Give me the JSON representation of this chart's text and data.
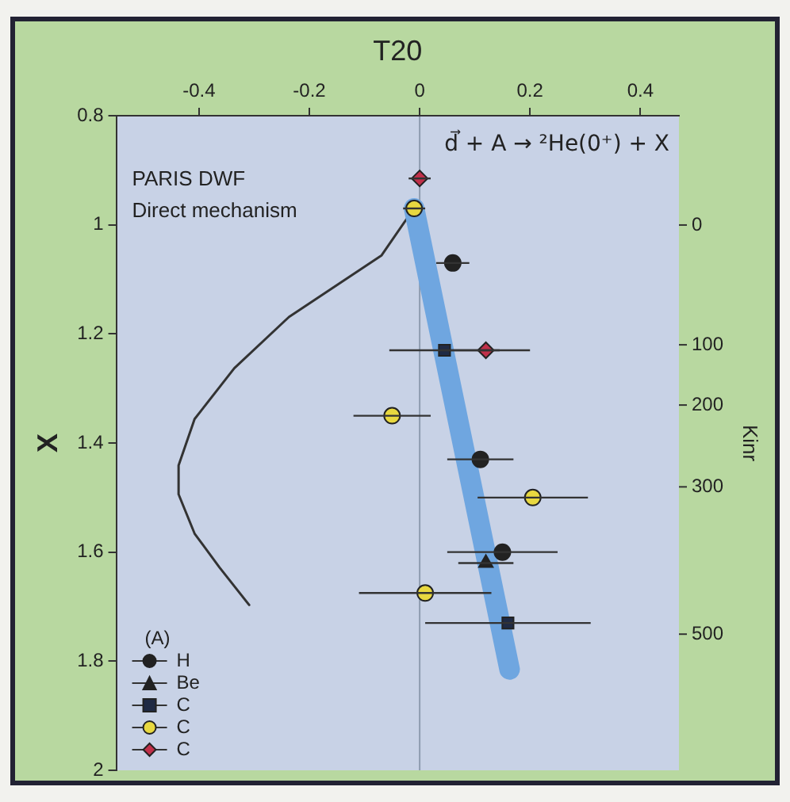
{
  "chart_data": {
    "type": "scatter",
    "xlabel": "T20",
    "ylabel": "X",
    "legend_title": "(A)",
    "legend": "bottom left",
    "xlim": [
      -0.55,
      0.47
    ],
    "xticks": [
      -0.4,
      -0.2,
      0,
      0.2,
      0.4
    ],
    "ylim": [
      2,
      0.8
    ],
    "yticks": [
      0.8,
      1,
      1.2,
      1.4,
      1.6,
      1.8,
      2
    ],
    "ref_lines": [
      {
        "axis": "x",
        "value": 0,
        "color": "#8e9cb0"
      }
    ],
    "annotations": [
      "d⃗ + A → ²He(0⁺) + X",
      "PARIS DWF",
      "Direct mechanism",
      "0",
      "100",
      "200",
      "300",
      "500",
      "Kinr"
    ],
    "series": [
      {
        "type": "line",
        "color": "#6fa6e0",
        "x": [
          -0.01,
          0.163
        ],
        "values": [
          0.97,
          1.815
        ]
      },
      {
        "type": "line",
        "color": "#333333",
        "x": [
          -0.016,
          -0.069,
          -0.237,
          -0.336,
          -0.408,
          -0.437,
          -0.437,
          -0.408,
          -0.363,
          -0.309
        ],
        "values": [
          0.978,
          1.056,
          1.169,
          1.263,
          1.356,
          1.441,
          1.494,
          1.566,
          1.628,
          1.697
        ]
      },
      {
        "name": "H",
        "marker": "circle",
        "color": "#222222",
        "x": [
          0.06,
          0.11,
          0.15
        ],
        "values": [
          1.07,
          1.43,
          1.6
        ],
        "xerrors": [
          0.03,
          0.06,
          0.1
        ]
      },
      {
        "name": "Be",
        "marker": "triangle",
        "color": "#222222",
        "x": [
          0.12
        ],
        "values": [
          1.62
        ],
        "xerrors": [
          0.05
        ]
      },
      {
        "name": "C",
        "marker": "square",
        "color": "#1f2a44",
        "x": [
          0.045,
          0.16
        ],
        "values": [
          1.23,
          1.73
        ],
        "xerrors": [
          0.1,
          0.15
        ]
      },
      {
        "name": "C",
        "marker": "circle",
        "color": "#e8d840",
        "x": [
          -0.01,
          -0.05,
          0.205,
          0.01
        ],
        "values": [
          0.97,
          1.35,
          1.5,
          1.675
        ],
        "xerrors": [
          0.02,
          0.07,
          0.1,
          0.12
        ]
      },
      {
        "name": "C",
        "marker": "diamond",
        "color": "#c0304a",
        "x": [
          0.0,
          0.12
        ],
        "values": [
          0.915,
          1.23
        ],
        "xerrors": [
          0.02,
          0.08
        ]
      }
    ]
  }
}
